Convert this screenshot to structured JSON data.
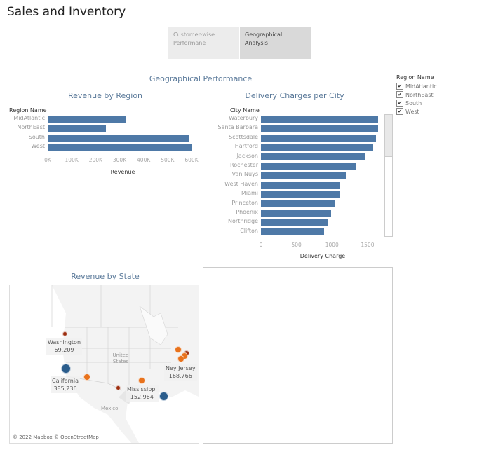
{
  "title": "Sales and Inventory",
  "tabs": [
    {
      "label": "Customer-wise Performane",
      "active": false
    },
    {
      "label": "Geographical Analysis",
      "active": true
    }
  ],
  "section_title": "Geographical Performance",
  "legend": {
    "title": "Region Name",
    "items": [
      {
        "label": "MidAtlantic",
        "checked": true
      },
      {
        "label": "NorthEast",
        "checked": true
      },
      {
        "label": "South",
        "checked": true
      },
      {
        "label": "West",
        "checked": true
      }
    ]
  },
  "chart_data": [
    {
      "type": "bar",
      "orientation": "horizontal",
      "title": "Revenue by Region",
      "category_header": "Region Name",
      "categories": [
        "MidAtlantic",
        "NorthEast",
        "South",
        "West"
      ],
      "values": [
        328000,
        243000,
        588000,
        600000
      ],
      "xlabel": "Revenue",
      "xlim": [
        0,
        600000
      ],
      "ticks": [
        "0K",
        "100K",
        "200K",
        "300K",
        "400K",
        "500K",
        "600K"
      ],
      "color": "#4e79a7"
    },
    {
      "type": "bar",
      "orientation": "horizontal",
      "title": "Delivery Charges per City",
      "category_header": "City Name",
      "categories": [
        "Waterbury",
        "Santa Barbara",
        "Scottsdale",
        "Hartford",
        "Jackson",
        "Rochester",
        "Van Nuys",
        "West Haven",
        "Miami",
        "Princeton",
        "Phoenix",
        "Northridge",
        "Clifton"
      ],
      "values": [
        1648,
        1648,
        1622,
        1577,
        1468,
        1346,
        1191,
        1119,
        1119,
        1040,
        987,
        941,
        888
      ],
      "xlabel": "Delivery Charge",
      "xlim": [
        0,
        1700
      ],
      "ticks": [
        "0",
        "500",
        "1000",
        "1500"
      ],
      "color": "#4e79a7"
    }
  ],
  "map": {
    "title": "Revenue by State",
    "attribution": "© 2022 Mapbox © OpenStreetMap",
    "country_labels": [
      "United States",
      "Mexico"
    ],
    "labels": [
      {
        "name": "Washington",
        "value": "69,209"
      },
      {
        "name": "California",
        "value": "385,236"
      },
      {
        "name": "Ney Jersey",
        "value": "168,766"
      },
      {
        "name": "Mississippi",
        "value": "152,964"
      }
    ],
    "colors": {
      "high": "#2b5d8c",
      "mid": "#e8721c",
      "low": "#9c2d0e"
    }
  }
}
